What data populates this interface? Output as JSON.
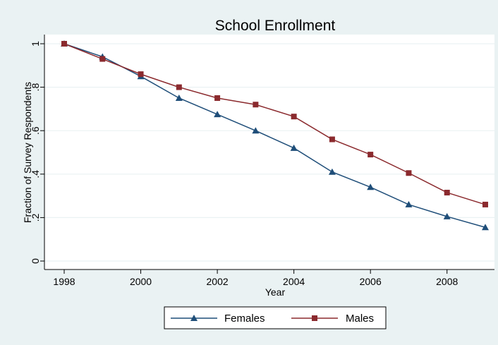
{
  "chart_data": {
    "type": "line",
    "title": "School Enrollment",
    "xlabel": "Year",
    "ylabel": "Fraction of Survey Respondents",
    "x": [
      1998,
      1999,
      2000,
      2001,
      2002,
      2003,
      2004,
      2005,
      2006,
      2007,
      2008,
      2009
    ],
    "xlim": [
      1998,
      2009
    ],
    "ylim": [
      0,
      1
    ],
    "xticks": [
      1998,
      2000,
      2002,
      2004,
      2006,
      2008
    ],
    "xtick_labels": [
      "1998",
      "2000",
      "2002",
      "2004",
      "2006",
      "2008"
    ],
    "yticks": [
      0,
      0.2,
      0.4,
      0.6,
      0.8,
      1
    ],
    "ytick_labels": [
      "0",
      ".2",
      ".4",
      ".6",
      ".8",
      "1"
    ],
    "grid": "horizontal",
    "legend_position": "bottom",
    "series": [
      {
        "name": "Females",
        "marker": "triangle",
        "color": "#1f4e79",
        "values": [
          1.0,
          0.94,
          0.85,
          0.75,
          0.675,
          0.6,
          0.52,
          0.41,
          0.34,
          0.26,
          0.205,
          0.155
        ]
      },
      {
        "name": "Males",
        "marker": "square",
        "color": "#8b2a2e",
        "values": [
          1.0,
          0.93,
          0.86,
          0.8,
          0.75,
          0.72,
          0.665,
          0.56,
          0.49,
          0.405,
          0.315,
          0.26
        ]
      }
    ]
  },
  "colors": {
    "outer_background": "#eaf2f3",
    "plot_background": "#ffffff",
    "gridline": "#eaf2f3"
  }
}
